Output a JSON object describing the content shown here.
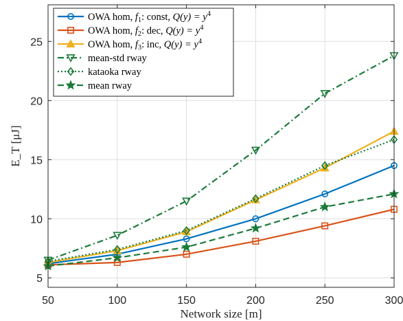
{
  "chart_data": {
    "type": "line",
    "xlabel": "Network size [m]",
    "ylabel": "E_T [μJ]",
    "xlim": [
      50,
      300
    ],
    "ylim": [
      4.2,
      28.1
    ],
    "xticks": [
      50,
      100,
      150,
      200,
      250,
      300
    ],
    "yticks": [
      5,
      10,
      15,
      20,
      25
    ],
    "grid": true,
    "legend_position": "top-left",
    "x": [
      50,
      100,
      150,
      200,
      250,
      300
    ],
    "series": [
      {
        "name": "OWA hom, f1: const, Q(y) = y^4",
        "values": [
          6.2,
          7.0,
          8.3,
          10.0,
          12.1,
          14.5
        ],
        "color": "#0072BD",
        "marker": "circle",
        "dash": "solid"
      },
      {
        "name": "OWA hom, f2: dec, Q(y) = y^4",
        "values": [
          6.1,
          6.3,
          7.0,
          8.1,
          9.4,
          10.8
        ],
        "color": "#D95319",
        "marker": "square",
        "dash": "solid"
      },
      {
        "name": "OWA hom, f3: inc, Q(y) = y^4",
        "values": [
          6.3,
          7.3,
          8.9,
          11.6,
          14.3,
          17.4
        ],
        "color": "#EDB120",
        "marker": "triangle-up",
        "dash": "solid"
      },
      {
        "name": "mean-std rway",
        "values": [
          6.5,
          8.6,
          11.5,
          15.8,
          20.6,
          23.8
        ],
        "color": "#1B7B3A",
        "marker": "triangle-down",
        "dash": "dashdot"
      },
      {
        "name": "kataoka rway",
        "values": [
          6.4,
          7.4,
          9.0,
          11.7,
          14.5,
          16.7
        ],
        "color": "#1B7B3A",
        "marker": "diamond",
        "dash": "dotted"
      },
      {
        "name": "mean rway",
        "values": [
          6.0,
          6.7,
          7.6,
          9.2,
          11.0,
          12.1
        ],
        "color": "#1B7B3A",
        "marker": "star",
        "dash": "dashed"
      }
    ]
  }
}
